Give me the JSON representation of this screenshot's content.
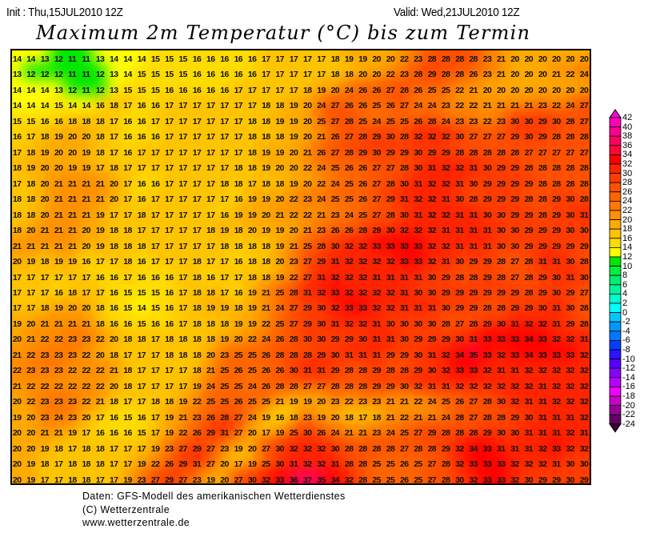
{
  "header": {
    "init": "Init : Thu,15JUL2010 12Z",
    "valid": "Valid: Wed,21JUL2010 12Z",
    "title": "Maximum 2m Temperatur (°C) bis zum Termin"
  },
  "legend": {
    "labels": [
      "42",
      "40",
      "38",
      "36",
      "34",
      "32",
      "30",
      "28",
      "26",
      "24",
      "22",
      "20",
      "18",
      "16",
      "14",
      "12",
      "10",
      "8",
      "6",
      "4",
      "2",
      "0",
      "-2",
      "-4",
      "-6",
      "-8",
      "-10",
      "-12",
      "-14",
      "-16",
      "-18",
      "-20",
      "-22",
      "-24"
    ],
    "colors": [
      "#ff00b8",
      "#ff0090",
      "#ff0060",
      "#ff0838",
      "#ff0000",
      "#ff2400",
      "#ff3c00",
      "#ff5000",
      "#ff6400",
      "#ff7800",
      "#ff9000",
      "#ffaa00",
      "#ffc400",
      "#ffdc00",
      "#ffff00",
      "#00e800",
      "#00f040",
      "#00f070",
      "#00f49c",
      "#00ffd0",
      "#00ffff",
      "#00c8ff",
      "#0098ff",
      "#0078ff",
      "#0040ff",
      "#2c14ff",
      "#5500ff",
      "#8800ff",
      "#b800ff",
      "#f000ff",
      "#c800c8",
      "#960096",
      "#640064"
    ],
    "top_arrow_color": "#ff00dc",
    "bottom_arrow_color": "#3c003c"
  },
  "map": {
    "rows": [
      "14 14 13 12 11 11 13 14 14 14 15 15 15 16 16 16 16 16 17 17 17 17 17 18 19 19 20 20 22 23 28 28 28 28 23 21 20 20 20 20 20 20",
      "13 12 12 12 11 11 12 13 14 15 15 15 15 16 16 16 16 16 17 17 17 17 17 18 18 20 20 22 23 28 29 28 28 26 23 21 20 20 20 21 22 24",
      "14 14 14 13 12 11 12 13 15 15 15 16 16 16 16 16 17 17 17 17 17 18 19 20 24 26 26 27 28 26 25 25 22 21 20 20 20 20 20 20 20 20",
      "14 14 14 15 14 14 16 18 17 16 16 17 17 17 17 17 17 17 18 18 19 20 24 27 26 26 25 26 27 24 24 23 22 22 21 21 21 21 23 22 24 27",
      "15 15 16 16 18 18 18 17 16 16 17 17 17 17 17 17 17 18 18 19 19 20 25 27 28 25 24 25 25 26 28 24 23 23 22 23 30 30 29 30 28 27",
      "16 17 18 19 20 20 18 17 16 16 16 17 17 17 17 17 17 18 18 18 19 20 21 26 27 28 29 30 28 32 32 32 30 27 27 27 29 30 29 28 28 28",
      "17 18 19 20 20 19 18 17 16 17 17 17 17 17 17 17 17 18 19 19 20 21 26 27 28 29 30 29 29 30 29 29 28 28 28 28 28 27 27 27 27 27",
      "18 19 20 20 19 19 17 18 17 17 17 17 17 17 17 17 18 18 19 20 20 22 24 25 26 26 27 27 28 30 31 32 32 31 30 29 29 28 28 28 28 28",
      "17 18 20 21 21 21 21 20 17 16 16 17 17 17 17 18 18 17 18 18 19 20 22 24 25 26 27 28 30 31 32 32 31 30 29 29 29 29 28 28 28 28",
      "18 18 20 21 21 21 21 20 17 16 17 17 17 17 17 17 16 19 19 20 22 23 24 25 25 26 27 29 31 32 32 31 30 28 29 29 29 28 28 29 30 28",
      "18 18 20 21 21 21 19 17 17 18 17 17 17 17 17 16 19 19 20 21 22 22 21 23 24 25 27 28 30 31 32 32 31 31 30 30 29 29 28 29 30 31",
      "18 20 21 21 21 20 19 18 18 17 17 17 17 17 18 19 18 20 19 19 20 21 23 26 26 28 29 30 32 32 32 31 31 31 31 30 30 29 29 29 30 30",
      "21 21 21 21 21 20 19 18 18 18 17 17 17 17 17 18 18 18 18 19 21 25 28 30 32 32 33 33 33 33 32 32 31 31 31 30 30 29 29 29 29 29",
      "20 19 18 19 19 16 17 17 18 16 17 17 17 18 17 17 16 18 18 20 23 27 29 31 32 32 32 32 33 33 32 31 30 29 29 28 27 28 31 31 30 28",
      "17 17 17 17 17 17 16 16 17 16 16 16 17 18 16 17 17 18 18 19 22 27 31 32 32 32 31 31 31 31 30 29 28 28 29 28 27 28 29 30 31 30",
      "17 17 17 16 18 17 17 16 15 15 15 16 17 18 18 17 16 19 21 25 28 31 32 33 32 32 32 32 31 30 30 29 29 29 29 29 29 28 29 30 29 27",
      "17 17 18 19 20 20 18 16 15 14 15 16 17 18 19 19 18 19 21 24 27 29 30 32 33 33 32 32 31 31 31 30 29 29 28 28 29 29 30 31 30 28",
      "19 20 21 21 21 21 18 16 16 15 16 16 17 18 18 18 19 19 22 25 27 29 30 31 32 32 31 30 30 30 30 28 27 28 29 30 31 32 32 31 29 28",
      "20 21 22 22 23 23 22 20 18 18 17 18 18 18 18 19 20 22 24 26 28 30 30 29 29 30 31 31 30 29 29 29 30 31 33 33 33 34 33 32 32 31",
      "21 22 23 23 23 22 20 18 17 17 17 18 18 18 20 23 25 25 26 28 28 28 29 30 31 31 31 29 29 30 31 32 34 35 33 32 33 34 33 33 33 32",
      "22 23 23 23 22 22 22 21 18 17 17 17 17 18 21 25 26 25 26 26 30 31 31 29 28 28 29 28 28 29 30 32 33 33 32 31 31 32 32 32 32 32",
      "21 22 22 22 22 22 22 20 18 17 17 17 17 19 24 25 25 24 26 28 28 27 27 28 28 28 29 29 30 32 31 31 32 32 32 32 32 32 31 32 32 32",
      "20 22 23 23 23 22 21 18 17 17 18 18 19 22 25 25 26 25 25 21 19 19 20 23 22 23 23 21 21 22 24 25 26 27 28 30 32 31 31 32 32 32",
      "19 20 23 24 23 20 17 16 15 16 17 19 21 23 26 28 27 24 19 16 18 23 19 20 18 17 18 21 22 21 21 24 28 27 28 28 29 30 31 31 31 32",
      "20 20 21 21 19 17 16 16 16 15 17 19 22 26 29 31 27 20 17 19 25 30 26 24 21 21 23 24 25 27 29 28 28 28 29 30 30 31 31 31 32 31",
      "20 20 19 18 17 18 18 17 17 17 19 23 27 29 27 23 19 20 27 30 32 32 32 30 28 28 28 28 27 28 28 29 32 34 33 31 31 31 32 33 32 32",
      "20 19 18 17 18 18 18 17 17 19 22 26 29 31 27 20 17 19 25 30 31 32 32 31 28 28 25 25 26 25 27 28 32 33 33 33 32 32 32 31 30 30",
      "20 19 17 17 18 18 17 17 19 23 27 29 27 23 19 20 27 30 32 33 36 37 35 34 32 28 25 25 26 25 27 28 30 32 33 33 32 30 29 29 30 29"
    ]
  },
  "footer": {
    "line1": "Daten: GFS-Modell des amerikanischen Wetterdienstes",
    "line2": "(C) Wetterzentrale",
    "line3": "www.wetterzentrale.de"
  }
}
